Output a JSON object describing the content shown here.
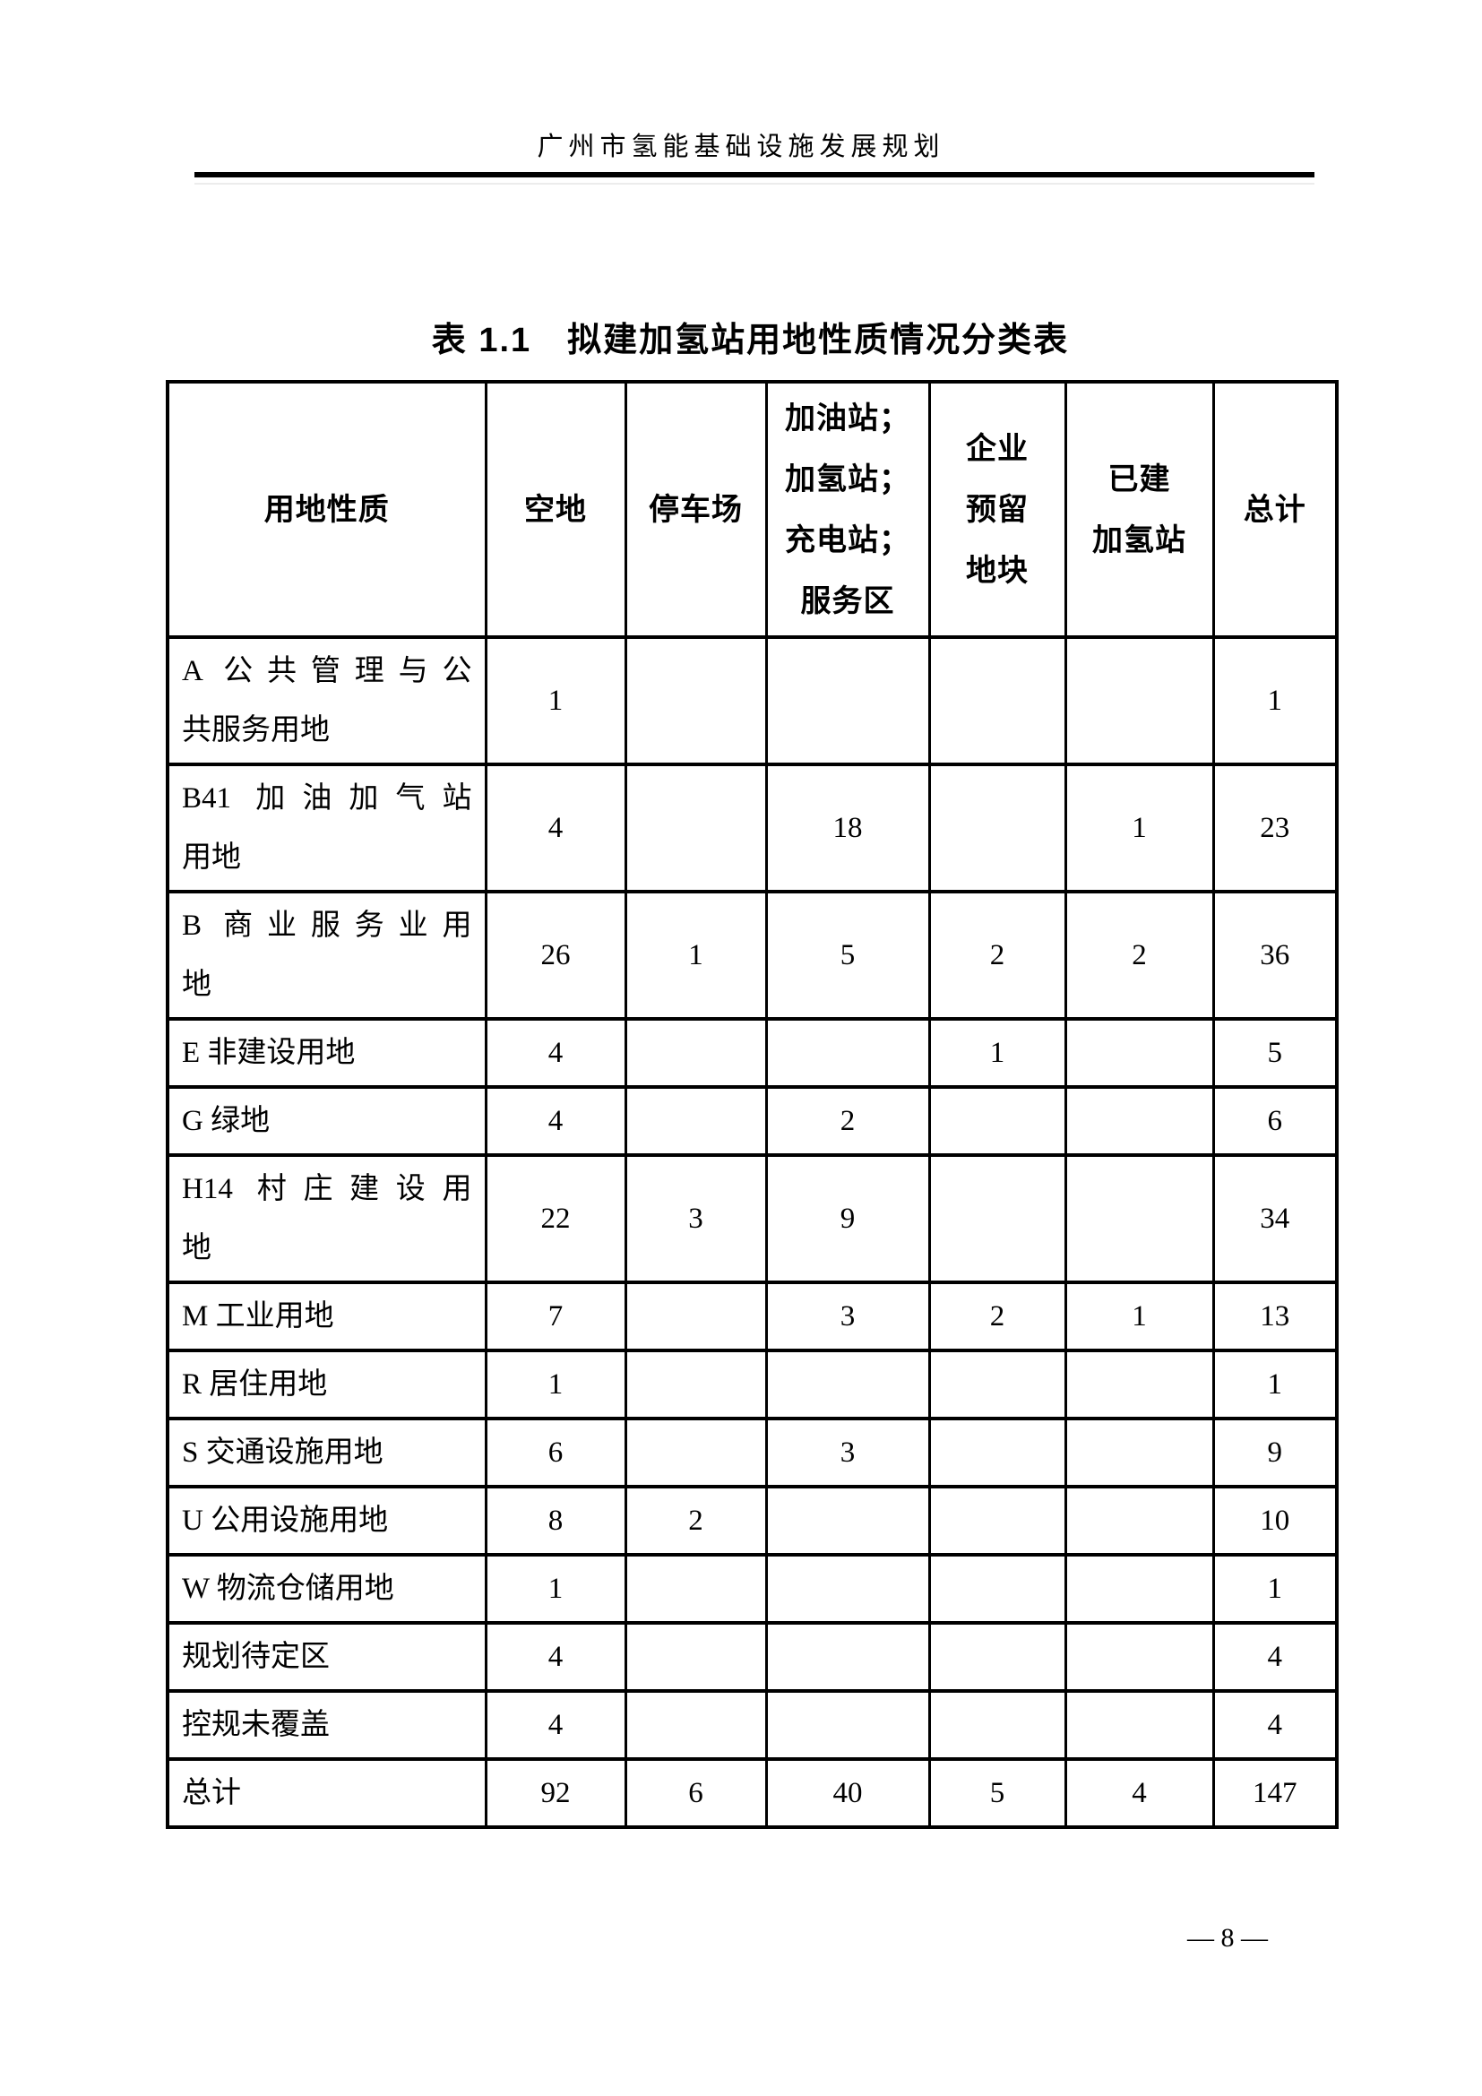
{
  "page": {
    "header": "广州市氢能基础设施发展规划",
    "page_number": "— 8 —"
  },
  "table": {
    "title": "表 1.1　拟建加氢站用地性质情况分类表",
    "columns": [
      "用地性质",
      "空地",
      "停车场",
      "加油站；\n加氢站；\n充电站；\n服务区",
      "企业\n预留\n地块",
      "已建\n加氢站",
      "总计"
    ],
    "rows": [
      {
        "label": "A 公共管理与公\n共服务用地",
        "values": [
          "1",
          "",
          "",
          "",
          "",
          "1"
        ]
      },
      {
        "label": "B41 加油加气站\n用地",
        "values": [
          "4",
          "",
          "18",
          "",
          "1",
          "23"
        ]
      },
      {
        "label": "B 商业服务业用\n地",
        "values": [
          "26",
          "1",
          "5",
          "2",
          "2",
          "36"
        ]
      },
      {
        "label": "E 非建设用地",
        "values": [
          "4",
          "",
          "",
          "1",
          "",
          "5"
        ]
      },
      {
        "label": "G 绿地",
        "values": [
          "4",
          "",
          "2",
          "",
          "",
          "6"
        ]
      },
      {
        "label": "H14 村庄建设用\n地",
        "values": [
          "22",
          "3",
          "9",
          "",
          "",
          "34"
        ]
      },
      {
        "label": "M 工业用地",
        "values": [
          "7",
          "",
          "3",
          "2",
          "1",
          "13"
        ]
      },
      {
        "label": "R 居住用地",
        "values": [
          "1",
          "",
          "",
          "",
          "",
          "1"
        ]
      },
      {
        "label": "S 交通设施用地",
        "values": [
          "6",
          "",
          "3",
          "",
          "",
          "9"
        ]
      },
      {
        "label": "U 公用设施用地",
        "values": [
          "8",
          "2",
          "",
          "",
          "",
          "10"
        ]
      },
      {
        "label": "W 物流仓储用地",
        "values": [
          "1",
          "",
          "",
          "",
          "",
          "1"
        ]
      },
      {
        "label": "规划待定区",
        "values": [
          "4",
          "",
          "",
          "",
          "",
          "4"
        ]
      },
      {
        "label": "控规未覆盖",
        "values": [
          "4",
          "",
          "",
          "",
          "",
          "4"
        ]
      },
      {
        "label": "总计",
        "values": [
          "92",
          "6",
          "40",
          "5",
          "4",
          "147"
        ]
      }
    ]
  }
}
